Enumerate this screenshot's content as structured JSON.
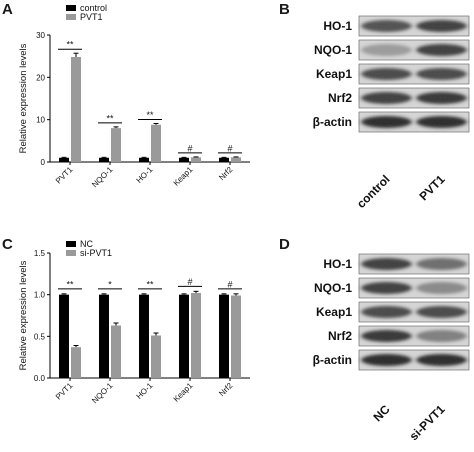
{
  "panels": {
    "A": {
      "letter": "A"
    },
    "B": {
      "letter": "B"
    },
    "C": {
      "letter": "C"
    },
    "D": {
      "letter": "D"
    }
  },
  "chart_data": [
    {
      "panel": "A",
      "type": "bar",
      "categories": [
        "PVT1",
        "NQO-1",
        "HO-1",
        "Keap1",
        "Nrf2"
      ],
      "series": [
        {
          "name": "control",
          "values": [
            1.0,
            1.0,
            1.0,
            1.0,
            1.0
          ],
          "errors": [
            0.1,
            0.1,
            0.1,
            0.1,
            0.1
          ],
          "color": "#000000"
        },
        {
          "name": "PVT1",
          "values": [
            24.8,
            8.0,
            8.8,
            1.1,
            1.1
          ],
          "errors": [
            0.9,
            0.3,
            0.3,
            0.1,
            0.1
          ],
          "color": "#9a9a9a"
        }
      ],
      "significance": [
        "**",
        "**",
        "**",
        "#",
        "#"
      ],
      "ylabel": "Relative expression levels",
      "ylim": [
        0,
        30
      ],
      "yticks": [
        "0",
        "10",
        "20",
        "30"
      ],
      "legend_position": "top-left"
    },
    {
      "panel": "C",
      "type": "bar",
      "categories": [
        "PVT1",
        "NQO-1",
        "HO-1",
        "Keap1",
        "Nrf2"
      ],
      "series": [
        {
          "name": "NC",
          "values": [
            1.0,
            1.0,
            1.0,
            1.0,
            1.0
          ],
          "errors": [
            0.01,
            0.01,
            0.01,
            0.01,
            0.01
          ],
          "color": "#000000"
        },
        {
          "name": "si-PVT1",
          "values": [
            0.37,
            0.63,
            0.51,
            1.02,
            0.99
          ],
          "errors": [
            0.02,
            0.03,
            0.03,
            0.02,
            0.02
          ],
          "color": "#9a9a9a"
        }
      ],
      "significance": [
        "**",
        "*",
        "**",
        "#",
        "#"
      ],
      "ylabel": "Relative expression levels",
      "ylim": [
        0,
        1.5
      ],
      "yticks": [
        "0.0",
        "0.5",
        "1.0",
        "1.5"
      ],
      "legend_position": "top-left"
    }
  ],
  "blots": [
    {
      "panel": "B",
      "labels": [
        "HO-1",
        "NQO-1",
        "Keap1",
        "Nrf2",
        "β-actin"
      ],
      "lanes": [
        "control",
        "PVT1"
      ],
      "intensity": [
        [
          0.75,
          0.85
        ],
        [
          0.35,
          0.85
        ],
        [
          0.8,
          0.8
        ],
        [
          0.85,
          0.9
        ],
        [
          0.95,
          0.95
        ]
      ]
    },
    {
      "panel": "D",
      "labels": [
        "HO-1",
        "NQO-1",
        "Keap1",
        "Nrf2",
        "β-actin"
      ],
      "lanes": [
        "NC",
        "si-PVT1"
      ],
      "intensity": [
        [
          0.85,
          0.6
        ],
        [
          0.85,
          0.45
        ],
        [
          0.8,
          0.8
        ],
        [
          0.9,
          0.5
        ],
        [
          0.95,
          0.95
        ]
      ]
    }
  ]
}
